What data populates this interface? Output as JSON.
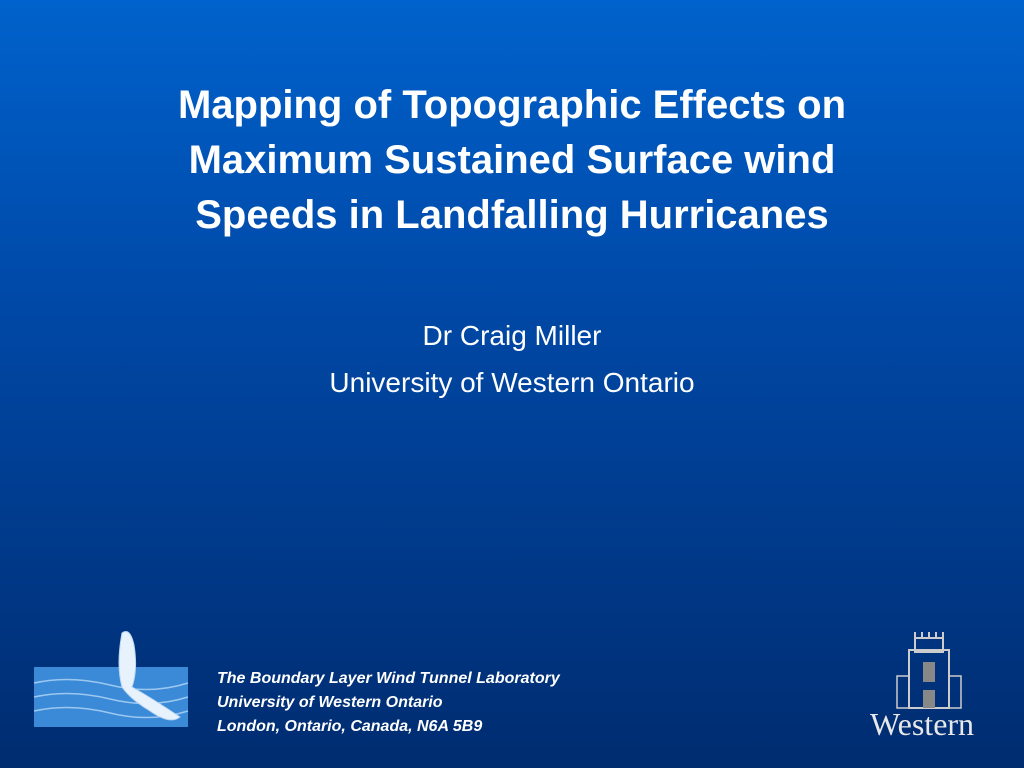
{
  "title": {
    "lines": [
      "Mapping of Topographic Effects on",
      "Maximum Sustained Surface wind",
      "Speeds in Landfalling Hurricanes"
    ]
  },
  "subtitle": {
    "lines": [
      "Dr Craig Miller",
      "University of Western Ontario"
    ]
  },
  "footer": {
    "lines": [
      "The Boundary Layer Wind Tunnel Laboratory",
      "University of Western Ontario",
      "London, Ontario, Canada, N6A 5B9"
    ]
  },
  "logo": {
    "text": "Western"
  }
}
